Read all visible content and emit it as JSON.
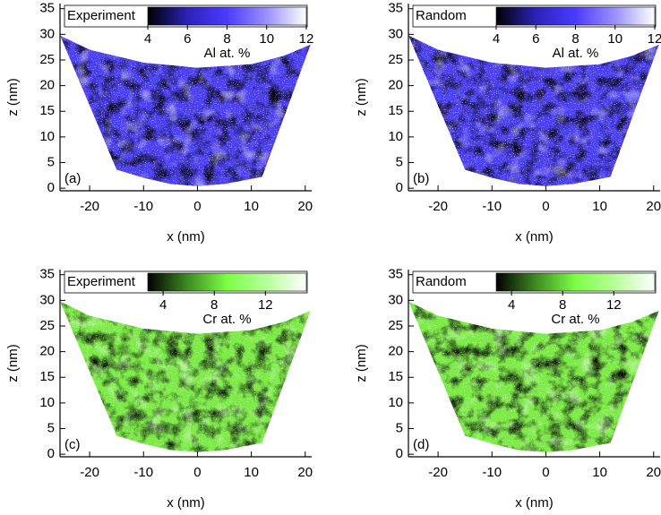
{
  "chart_data": [
    {
      "type": "heatmap",
      "legend": "Experiment",
      "panel_label": "(a)",
      "xlabel": "x (nm)",
      "ylabel": "z (nm)",
      "xlim": [
        -25.5,
        21.2
      ],
      "ylim": [
        -0.5,
        36
      ],
      "xticks": [
        -20,
        -10,
        0,
        10,
        20
      ],
      "yticks": [
        0,
        5,
        10,
        15,
        20,
        25,
        30,
        35
      ],
      "region": {
        "x": [
          -25.5,
          -20,
          -10,
          0,
          10,
          16,
          21,
          12,
          5,
          0,
          -5,
          -10,
          -15
        ],
        "z": [
          29.8,
          27,
          24.5,
          23.5,
          24.2,
          25.8,
          28,
          2.2,
          0.8,
          0.4,
          0.8,
          2,
          3.6
        ]
      },
      "color": "#4b3ff2",
      "colorbar": {
        "label": "Al at. %",
        "lim": [
          4,
          12
        ],
        "ticks": [
          4,
          6,
          8,
          10,
          12
        ],
        "colors": [
          "#000000",
          "#2a22b8",
          "#4a3cff",
          "#9a90ff",
          "#ffffff"
        ]
      }
    },
    {
      "type": "heatmap",
      "legend": "Random",
      "panel_label": "(b)",
      "xlabel": "x (nm)",
      "ylabel": "z (nm)",
      "xlim": [
        -25.5,
        21.2
      ],
      "ylim": [
        -0.5,
        36
      ],
      "xticks": [
        -20,
        -10,
        0,
        10,
        20
      ],
      "yticks": [
        0,
        5,
        10,
        15,
        20,
        25,
        30,
        35
      ],
      "region": {
        "x": [
          -25.5,
          -20,
          -10,
          0,
          10,
          16,
          21,
          12,
          5,
          0,
          -5,
          -10,
          -15
        ],
        "z": [
          29.8,
          27,
          24.5,
          23.5,
          24.2,
          25.8,
          28,
          2.2,
          0.8,
          0.4,
          0.8,
          2,
          3.6
        ]
      },
      "color": "#4b3ff2",
      "colorbar": {
        "label": "Al at. %",
        "lim": [
          4,
          12
        ],
        "ticks": [
          4,
          6,
          8,
          10,
          12
        ],
        "colors": [
          "#000000",
          "#2a22b8",
          "#4a3cff",
          "#9a90ff",
          "#ffffff"
        ]
      }
    },
    {
      "type": "heatmap",
      "legend": "Experiment",
      "panel_label": "(c)",
      "xlabel": "x (nm)",
      "ylabel": "z (nm)",
      "xlim": [
        -25.5,
        21.2
      ],
      "ylim": [
        -0.5,
        36
      ],
      "xticks": [
        -20,
        -10,
        0,
        10,
        20
      ],
      "yticks": [
        0,
        5,
        10,
        15,
        20,
        25,
        30,
        35
      ],
      "region": {
        "x": [
          -25.5,
          -20,
          -10,
          0,
          10,
          16,
          21,
          12,
          5,
          0,
          -5,
          -10,
          -15
        ],
        "z": [
          29.8,
          27,
          24.5,
          23.5,
          24.2,
          25.8,
          28,
          2.2,
          0.8,
          0.4,
          0.8,
          2,
          3.6
        ]
      },
      "color": "#7bea45",
      "colorbar": {
        "label": "Cr at. %",
        "lim": [
          2.8,
          15.2
        ],
        "ticks": [
          4,
          8,
          12
        ],
        "colors": [
          "#000000",
          "#3f8a22",
          "#7cff45",
          "#b8ff9a",
          "#ffffff"
        ]
      }
    },
    {
      "type": "heatmap",
      "legend": "Random",
      "panel_label": "(d)",
      "xlabel": "x (nm)",
      "ylabel": "z (nm)",
      "xlim": [
        -25.5,
        21.2
      ],
      "ylim": [
        -0.5,
        36
      ],
      "xticks": [
        -20,
        -10,
        0,
        10,
        20
      ],
      "yticks": [
        0,
        5,
        10,
        15,
        20,
        25,
        30,
        35
      ],
      "region": {
        "x": [
          -25.5,
          -20,
          -10,
          0,
          10,
          16,
          21,
          12,
          5,
          0,
          -5,
          -10,
          -15
        ],
        "z": [
          29.8,
          27,
          24.5,
          23.5,
          24.2,
          25.8,
          28,
          2.2,
          0.8,
          0.4,
          0.8,
          2,
          3.6
        ]
      },
      "color": "#7bea45",
      "colorbar": {
        "label": "Cr at. %",
        "lim": [
          2.8,
          15.2
        ],
        "ticks": [
          4,
          8,
          12
        ],
        "colors": [
          "#000000",
          "#3f8a22",
          "#7cff45",
          "#b8ff9a",
          "#ffffff"
        ]
      }
    }
  ]
}
